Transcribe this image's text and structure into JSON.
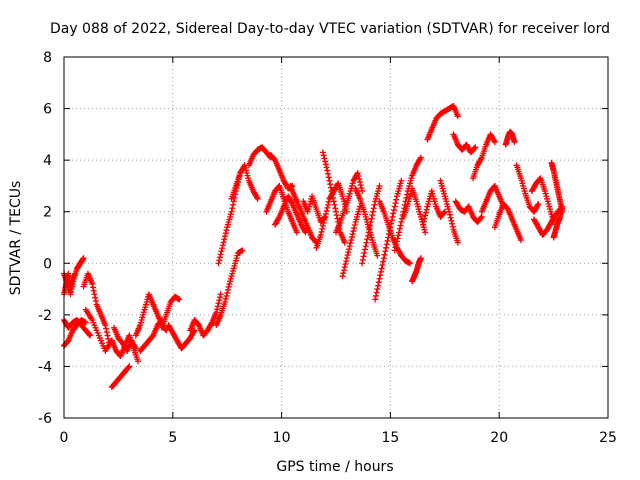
{
  "chart_data": {
    "type": "scatter",
    "title": "Day 088 of 2022, Sidereal Day-to-day VTEC variation (SDTVAR) for receiver lord",
    "xlabel": "GPS time / hours",
    "ylabel": "SDTVAR / TECUs",
    "xlim": [
      0,
      25
    ],
    "ylim": [
      -6,
      8
    ],
    "xticks": [
      0,
      5,
      10,
      15,
      20,
      25
    ],
    "yticks": [
      -6,
      -4,
      -2,
      0,
      2,
      4,
      6,
      8
    ],
    "xtick_labels": [
      "0",
      "5",
      "10",
      "15",
      "20",
      "25"
    ],
    "ytick_labels": [
      "-6",
      "-4",
      "-2",
      "0",
      "2",
      "4",
      "6",
      "8"
    ],
    "grid": true,
    "marker": "plus",
    "color": "#ff0000",
    "series": [
      {
        "name": "SDTVAR",
        "segments": [
          {
            "x": [
              0.0,
              0.15,
              0.3,
              0.45,
              0.6,
              0.75,
              0.9
            ],
            "y": [
              -0.4,
              -0.8,
              -1.2,
              -0.6,
              -0.2,
              0.0,
              0.2
            ]
          },
          {
            "x": [
              0.0,
              0.1,
              0.2,
              0.3,
              0.4
            ],
            "y": [
              -1.2,
              -0.8,
              -0.4,
              -1.0,
              -0.5
            ]
          },
          {
            "x": [
              0.0,
              0.2,
              0.4,
              0.6,
              0.8,
              1.0
            ],
            "y": [
              -3.2,
              -3.0,
              -2.6,
              -2.4,
              -2.2,
              -2.3
            ]
          },
          {
            "x": [
              0.0,
              0.2,
              0.4,
              0.6,
              0.8,
              1.0,
              1.2
            ],
            "y": [
              -2.2,
              -2.5,
              -2.3,
              -2.2,
              -2.4,
              -2.6,
              -2.8
            ]
          },
          {
            "x": [
              0.9,
              1.1,
              1.3,
              1.5,
              1.7,
              1.9,
              2.1
            ],
            "y": [
              -0.9,
              -0.4,
              -0.8,
              -1.6,
              -2.0,
              -2.4,
              -3.2
            ]
          },
          {
            "x": [
              1.0,
              1.3,
              1.6,
              1.9,
              2.2
            ],
            "y": [
              -1.8,
              -2.2,
              -2.8,
              -3.4,
              -3.0
            ]
          },
          {
            "x": [
              2.2,
              2.4,
              2.6,
              2.8,
              3.0,
              3.2,
              3.4
            ],
            "y": [
              -3.0,
              -3.4,
              -3.6,
              -3.2,
              -2.8,
              -3.3,
              -3.8
            ]
          },
          {
            "x": [
              2.2,
              2.4,
              2.6,
              2.8,
              3.0
            ],
            "y": [
              -4.8,
              -4.6,
              -4.4,
              -4.2,
              -4.0
            ]
          },
          {
            "x": [
              2.3,
              2.5,
              2.7,
              2.9,
              3.1,
              3.3
            ],
            "y": [
              -2.5,
              -2.9,
              -3.1,
              -3.4,
              -3.0,
              -3.3
            ]
          },
          {
            "x": [
              3.3,
              3.5,
              3.7,
              3.9,
              4.1,
              4.3,
              4.5,
              4.7
            ],
            "y": [
              -2.8,
              -2.4,
              -1.8,
              -1.2,
              -1.6,
              -2.0,
              -2.4,
              -2.6
            ]
          },
          {
            "x": [
              3.5,
              3.7,
              3.9,
              4.1,
              4.3,
              4.5
            ],
            "y": [
              -3.4,
              -3.2,
              -3.0,
              -2.8,
              -2.4,
              -2.2
            ]
          },
          {
            "x": [
              4.5,
              4.7,
              4.9,
              5.1,
              5.3
            ],
            "y": [
              -2.5,
              -2.0,
              -1.5,
              -1.3,
              -1.4
            ]
          },
          {
            "x": [
              4.8,
              5.0,
              5.2,
              5.4,
              5.6,
              5.8,
              6.0
            ],
            "y": [
              -2.4,
              -2.7,
              -3.0,
              -3.3,
              -3.1,
              -2.9,
              -2.6
            ]
          },
          {
            "x": [
              5.8,
              6.0,
              6.2,
              6.4,
              6.6,
              6.8,
              7.0,
              7.2
            ],
            "y": [
              -2.6,
              -2.2,
              -2.4,
              -2.8,
              -2.6,
              -2.3,
              -1.9,
              -1.2
            ]
          },
          {
            "x": [
              7.0,
              7.2,
              7.4,
              7.6,
              7.8,
              8.0,
              8.2
            ],
            "y": [
              -2.4,
              -2.0,
              -1.5,
              -0.8,
              -0.2,
              0.4,
              0.5
            ]
          },
          {
            "x": [
              7.1,
              7.3,
              7.5,
              7.7,
              7.9,
              8.1
            ],
            "y": [
              0.0,
              0.7,
              1.4,
              2.0,
              2.8,
              3.5
            ]
          },
          {
            "x": [
              7.7,
              7.9,
              8.1,
              8.3,
              8.5,
              8.7,
              8.9
            ],
            "y": [
              2.5,
              3.0,
              3.5,
              3.8,
              3.2,
              2.8,
              2.5
            ]
          },
          {
            "x": [
              8.5,
              8.7,
              8.9,
              9.1,
              9.3,
              9.5
            ],
            "y": [
              3.8,
              4.2,
              4.4,
              4.5,
              4.3,
              4.1
            ]
          },
          {
            "x": [
              9.3,
              9.5,
              9.7,
              9.9,
              10.1,
              10.3,
              10.5,
              10.7
            ],
            "y": [
              2.0,
              2.4,
              2.8,
              3.0,
              2.5,
              2.0,
              1.6,
              1.2
            ]
          },
          {
            "x": [
              9.5,
              9.7,
              9.9,
              10.1,
              10.3,
              10.5
            ],
            "y": [
              4.2,
              4.0,
              3.6,
              3.2,
              2.9,
              3.0
            ]
          },
          {
            "x": [
              9.7,
              9.9,
              10.1,
              10.3,
              10.5,
              10.7,
              10.9,
              11.1
            ],
            "y": [
              1.5,
              1.8,
              2.2,
              2.6,
              2.3,
              1.9,
              1.5,
              1.2
            ]
          },
          {
            "x": [
              10.4,
              10.6,
              10.8,
              11.0,
              11.2,
              11.4,
              11.6
            ],
            "y": [
              3.0,
              2.6,
              2.2,
              1.8,
              1.4,
              1.0,
              0.8
            ]
          },
          {
            "x": [
              11.0,
              11.2,
              11.4,
              11.6,
              11.8,
              12.0
            ],
            "y": [
              2.4,
              2.0,
              2.6,
              2.1,
              1.6,
              1.8
            ]
          },
          {
            "x": [
              11.6,
              11.8,
              12.0,
              12.2,
              12.4,
              12.6,
              12.8,
              13.0
            ],
            "y": [
              0.6,
              1.1,
              1.8,
              2.5,
              2.8,
              3.1,
              2.6,
              2.0
            ]
          },
          {
            "x": [
              11.9,
              12.1,
              12.3,
              12.5,
              12.7,
              12.9
            ],
            "y": [
              4.3,
              3.6,
              2.8,
              2.0,
              1.2,
              0.8
            ]
          },
          {
            "x": [
              12.5,
              12.7,
              12.9,
              13.1,
              13.3,
              13.5,
              13.7
            ],
            "y": [
              1.2,
              1.6,
              2.1,
              2.6,
              3.2,
              3.5,
              2.8
            ]
          },
          {
            "x": [
              12.8,
              13.0,
              13.2,
              13.4,
              13.6
            ],
            "y": [
              -0.5,
              0.2,
              0.9,
              1.6,
              2.2
            ]
          },
          {
            "x": [
              13.4,
              13.6,
              13.8,
              14.0,
              14.2,
              14.4
            ],
            "y": [
              2.9,
              2.5,
              2.0,
              1.4,
              0.8,
              0.3
            ]
          },
          {
            "x": [
              13.7,
              13.9,
              14.1,
              14.3,
              14.5
            ],
            "y": [
              0.0,
              0.8,
              1.6,
              2.4,
              3.0
            ]
          },
          {
            "x": [
              14.3,
              14.5,
              14.7,
              14.9,
              15.1,
              15.3,
              15.5
            ],
            "y": [
              -1.4,
              -0.6,
              0.2,
              1.0,
              1.8,
              2.6,
              3.2
            ]
          },
          {
            "x": [
              14.5,
              14.7,
              14.9,
              15.1,
              15.3,
              15.5,
              15.7,
              15.9
            ],
            "y": [
              2.4,
              2.0,
              1.5,
              1.0,
              0.6,
              0.3,
              0.1,
              0.0
            ]
          },
          {
            "x": [
              15.2,
              15.4,
              15.6,
              15.8,
              16.0,
              16.2,
              16.4
            ],
            "y": [
              0.5,
              1.2,
              2.0,
              2.8,
              3.4,
              3.8,
              4.1
            ]
          },
          {
            "x": [
              15.6,
              15.8,
              16.0,
              16.2,
              16.4,
              16.6
            ],
            "y": [
              1.8,
              2.3,
              2.9,
              2.4,
              1.8,
              1.2
            ]
          },
          {
            "x": [
              16.0,
              16.1,
              16.2,
              16.3,
              16.4
            ],
            "y": [
              -0.7,
              -0.5,
              -0.3,
              0.0,
              0.2
            ]
          },
          {
            "x": [
              16.5,
              16.7,
              16.9,
              17.1,
              17.3,
              17.5
            ],
            "y": [
              1.5,
              2.2,
              2.8,
              2.2,
              1.8,
              2.0
            ]
          },
          {
            "x": [
              16.7,
              16.9,
              17.1,
              17.3,
              17.5,
              17.7,
              17.9,
              18.1
            ],
            "y": [
              4.8,
              5.2,
              5.6,
              5.8,
              5.9,
              6.0,
              6.1,
              5.7
            ]
          },
          {
            "x": [
              17.3,
              17.5,
              17.7,
              17.9,
              18.1
            ],
            "y": [
              3.2,
              2.6,
              2.0,
              1.3,
              0.8
            ]
          },
          {
            "x": [
              17.9,
              18.1,
              18.3,
              18.5,
              18.7,
              18.9
            ],
            "y": [
              5.0,
              4.6,
              4.4,
              4.6,
              4.3,
              4.5
            ]
          },
          {
            "x": [
              18.0,
              18.2,
              18.4,
              18.6,
              18.8,
              19.0,
              19.2
            ],
            "y": [
              2.4,
              2.1,
              2.0,
              2.2,
              1.8,
              1.6,
              1.8
            ]
          },
          {
            "x": [
              18.8,
              19.0,
              19.2,
              19.4,
              19.6,
              19.8
            ],
            "y": [
              3.3,
              3.8,
              4.1,
              4.6,
              5.0,
              4.7
            ]
          },
          {
            "x": [
              19.2,
              19.4,
              19.6,
              19.8,
              20.0,
              20.2
            ],
            "y": [
              2.0,
              2.4,
              2.8,
              3.0,
              2.6,
              2.2
            ]
          },
          {
            "x": [
              19.8,
              20.0,
              20.2,
              20.4,
              20.6,
              20.8,
              21.0
            ],
            "y": [
              1.4,
              1.9,
              2.3,
              2.1,
              1.7,
              1.3,
              0.9
            ]
          },
          {
            "x": [
              20.3,
              20.4,
              20.5,
              20.6,
              20.7
            ],
            "y": [
              4.6,
              4.9,
              5.1,
              5.0,
              4.7
            ]
          },
          {
            "x": [
              20.8,
              21.0,
              21.2,
              21.4,
              21.6,
              21.8
            ],
            "y": [
              3.8,
              3.3,
              2.7,
              2.2,
              2.0,
              2.3
            ]
          },
          {
            "x": [
              21.5,
              21.7,
              21.9,
              22.1,
              22.3,
              22.5
            ],
            "y": [
              2.8,
              3.1,
              3.3,
              2.8,
              2.2,
              1.6
            ]
          },
          {
            "x": [
              21.6,
              21.8,
              22.0,
              22.2,
              22.4,
              22.6,
              22.8
            ],
            "y": [
              1.7,
              1.4,
              1.1,
              1.3,
              1.6,
              1.9,
              2.1
            ]
          },
          {
            "x": [
              22.4,
              22.5,
              22.6,
              22.7,
              22.8,
              22.9
            ],
            "y": [
              3.9,
              3.6,
              3.2,
              2.8,
              2.4,
              2.0
            ]
          },
          {
            "x": [
              22.5,
              22.6,
              22.7,
              22.8,
              22.9
            ],
            "y": [
              1.0,
              1.3,
              1.6,
              1.8,
              2.2
            ]
          }
        ]
      }
    ]
  }
}
